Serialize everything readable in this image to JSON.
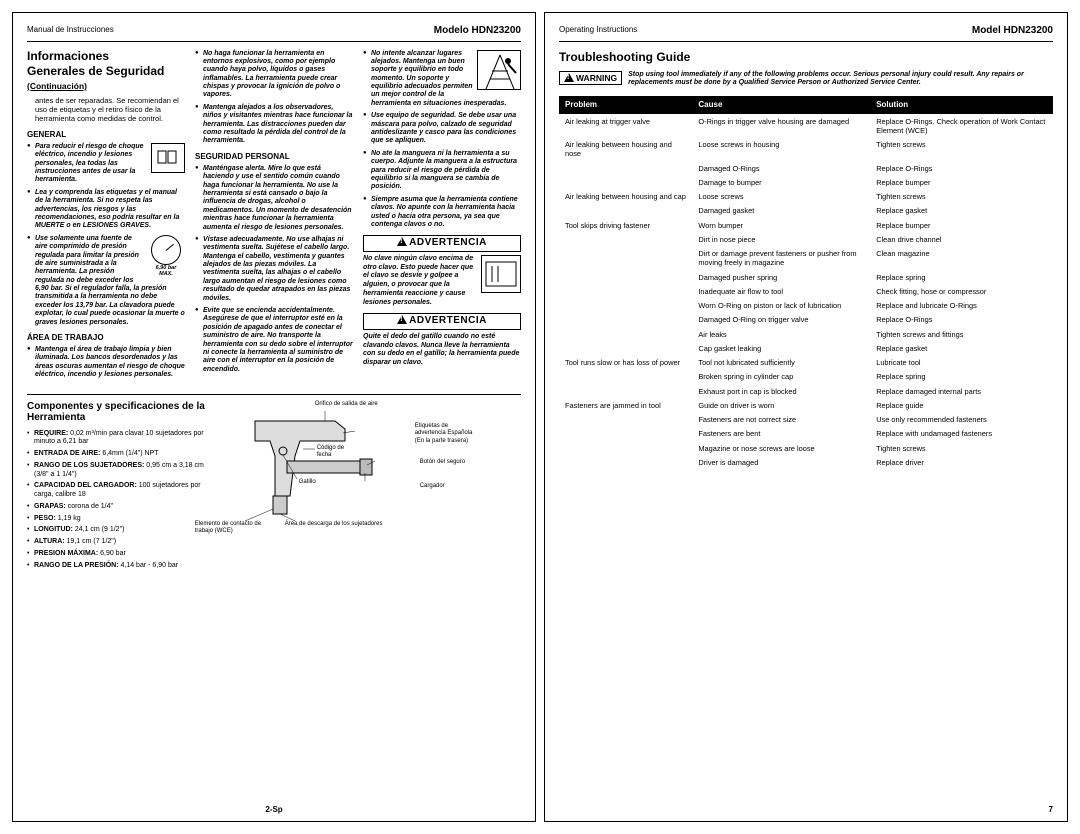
{
  "left": {
    "header_left": "Manual de Instrucciones",
    "header_right": "Modelo HDN23200",
    "title_l1": "Informaciones",
    "title_l2": "Generales de Seguridad",
    "cont": "(Continuación)",
    "intro": "antes de ser reparadas. Se recomiendan el uso de etiquetas y el retiro físico de la herramienta como medidas de control.",
    "h_general": "GENERAL",
    "general_items": [
      "Para reducir el riesgo de choque eléctrico, incendio y lesiones personales, lea todas las instrucciones antes de usar la herramienta.",
      "Lea y comprenda las etiquetas y el manual de la herramienta. Si no respeta las advertencias, los riesgos y las recomendaciones, eso podría resultar en la MUERTE o en LESIONES GRAVES.",
      "Use solamente una fuente de aire comprimido de presión regulada para limitar la presión de aire suministrada a la herramienta. La presión regulada no debe exceder los 6,90 bar. Si el regulador falla, la presión transmitida a la herramienta no debe exceder los 13,79 bar. La clavadora puede explotar, lo cual puede ocasionar la muerte o graves lesiones personales."
    ],
    "h_area": "ÁREA DE TRABAJO",
    "area_items": [
      "Mantenga el área de trabajo limpia y bien iluminada. Los bancos desordenados y las áreas oscuras aumentan el riesgo de choque eléctrico, incendio y lesiones personales."
    ],
    "col2_items": [
      "No haga funcionar la herramienta en entornos explosivos, como por ejemplo cuando haya polvo, líquidos o gases inflamables. La herramienta puede crear chispas y provocar la ignición de polvo o vapores.",
      "Mantenga alejados a los observadores, niños y visitantes mientras hace funcionar la herramienta. Las distracciones pueden dar como resultado la pérdida del control de la herramienta."
    ],
    "h_seg": "SEGURIDAD PERSONAL",
    "seg_items": [
      "Manténgase alerta. Mire lo que está haciendo y use el sentido común cuando haga funcionar la herramienta. No use la herramienta si está cansado o bajo la influencia de drogas, alcohol o medicamentos. Un momento de desatención mientras hace funcionar la herramienta aumenta el riesgo de lesiones personales.",
      "Vístase adecuadamente. No use alhajas ni vestimenta suelta. Sujétese el cabello largo. Mantenga el cabello, vestimenta y guantes alejados de las piezas móviles. La vestimenta suelta, las alhajas o el cabello largo aumentan el riesgo de lesiones como resultado de quedar atrapados en las piezas móviles.",
      "Evite que se encienda accidentalmente. Asegúrese de que el interruptor esté en la posición de apagado antes de conectar el suministro de aire. No transporte la herramienta con su dedo sobre el interruptor ni conecte la herramienta al suministro de aire con el interruptor en la posición de encendido."
    ],
    "col3_items": [
      "No intente alcanzar lugares alejados. Mantenga un buen soporte y equilibrio en todo momento. Un soporte y equilibrio adecuados permiten un mejor control de la herramienta en situaciones inesperadas.",
      "Use equipo de seguridad. Se debe usar una máscara para polvo, calzado de seguridad antideslizante y casco para las condiciones que se apliquen.",
      "No ate la manguera ni la herramienta a su cuerpo. Adjunte la manguera a la estructura para reducir el riesgo de pérdida de equilibrio si la manguera se cambia de posición.",
      "Siempre asuma que la herramienta contiene clavos. No apunte con la herramienta hacia usted o hacia otra persona, ya sea que contenga clavos o no."
    ],
    "warn1_label": "ADVERTENCIA",
    "warn1_text": "No clave ningún clavo encima de otro clavo. Esto puede hacer que el clavo se desvíe y golpee a alguien, o provocar que la herramienta reaccione y cause lesiones personales.",
    "warn2_label": "ADVERTENCIA",
    "warn2_text": "Quite el dedo del gatillo cuando no esté clavando clavos. Nunca lleve la herramienta con su dedo en el gatillo; la herramienta puede disparar un clavo.",
    "comp_title": "Componentes y specificaciones de la Herramienta",
    "specs": [
      {
        "b": "REQUIRE:",
        "t": " 0,02 m³/min para clavar 10 sujetadores por minuto a 6,21 bar"
      },
      {
        "b": "ENTRADA DE AIRE:",
        "t": " 6,4mm (1/4\") NPT"
      },
      {
        "b": "RANGO DE LOS SUJETADORES:",
        "t": " 0,95 cm a 3,18 cm (3/8\" a 1 1/4\")"
      },
      {
        "b": "CAPACIDAD DEL CARGADOR:",
        "t": " 100 sujetadores por carga, calibre 18"
      },
      {
        "b": "GRAPAS:",
        "t": " corona de 1/4\""
      },
      {
        "b": "PESO:",
        "t": " 1,19 kg"
      },
      {
        "b": "LONGITUD:",
        "t": " 24,1 cm (9 1/2\")"
      },
      {
        "b": "ALTURA:",
        "t": " 19,1 cm (7 1/2\")"
      },
      {
        "b": "PRESION MÁXIMA:",
        "t": " 6,90 bar"
      },
      {
        "b": "RANGO DE LA PRESIÓN:",
        "t": " 4,14 bar - 6,90 bar"
      }
    ],
    "callouts": {
      "c1": "Orifico de salida de aire",
      "c2": "Etiquetas de advertencia Española (En la parte trasera)",
      "c3": "Botón del seguro",
      "c4": "Código de fecha",
      "c5": "Gatillo",
      "c6": "Cargador",
      "c7": "Área de descarga de los sujetadores",
      "c8": "Elemento de contacto de trabajo (WCE)"
    },
    "gauge_l1": "6,90 bar",
    "gauge_l2": "MAX.",
    "pgnum": "2-Sp"
  },
  "right": {
    "header_left": "Operating Instructions",
    "header_right": "Model HDN23200",
    "title": "Troubleshooting Guide",
    "warn_label": "WARNING",
    "warn_text": "Stop using tool immediately if any of the following problems occur. Serious personal injury could result. Any repairs or replacements must be done by a Qualified Service Person or Authorized Service Center.",
    "th_problem": "Problem",
    "th_cause": "Cause",
    "th_solution": "Solution",
    "rows": [
      [
        "Air leaking at trigger valve",
        "O-Rings in trigger valve housing are damaged",
        "Replace O-Rings. Check operation of Work Contact Element (WCE)"
      ],
      [
        "Air leaking between housing and nose",
        "Loose screws in housing",
        "Tighten screws"
      ],
      [
        "",
        "Damaged O-Rings",
        "Replace O-Rings"
      ],
      [
        "",
        "Damage to bumper",
        "Replace bumper"
      ],
      [
        "Air leaking between housing and cap",
        "Loose screws",
        "Tighten screws"
      ],
      [
        "",
        "Damaged gasket",
        "Replace gasket"
      ],
      [
        "Tool skips driving fastener",
        "Worn bumper",
        "Replace bumper"
      ],
      [
        "",
        "Dirt in nose piece",
        "Clean drive channel"
      ],
      [
        "",
        "Dirt or damage prevent fasteners or pusher from moving freely in magazine",
        "Clean magazine"
      ],
      [
        "",
        "Damaged pusher spring",
        "Replace spring"
      ],
      [
        "",
        "Inadequate air flow to tool",
        "Check fitting, hose or compressor"
      ],
      [
        "",
        "Worn O-Ring on piston or lack of lubrication",
        "Replace and lubricate O-Rings"
      ],
      [
        "",
        "Damaged O-Ring on trigger valve",
        "Replace O-Rings"
      ],
      [
        "",
        "Air leaks",
        "Tighten screws and fittings"
      ],
      [
        "",
        "Cap gasket leaking",
        "Replace gasket"
      ],
      [
        "Tool runs slow or has loss of power",
        "Tool not lubricated sufficiently",
        "Lubricate tool"
      ],
      [
        "",
        "Broken spring in cylinder cap",
        "Replace spring"
      ],
      [
        "",
        "Exhaust port in cap is blocked",
        "Replace damaged internal parts"
      ],
      [
        "Fasteners are jammed in tool",
        "Guide on driver is worn",
        "Replace guide"
      ],
      [
        "",
        "Fasteners are not correct size",
        "Use only recommended fasteners"
      ],
      [
        "",
        "Fasteners are bent",
        "Replace with undamaged fasteners"
      ],
      [
        "",
        "Magazine or nose screws are loose",
        "Tighten screws"
      ],
      [
        "",
        "Driver is damaged",
        "Replace driver"
      ]
    ],
    "pgnum": "7"
  }
}
